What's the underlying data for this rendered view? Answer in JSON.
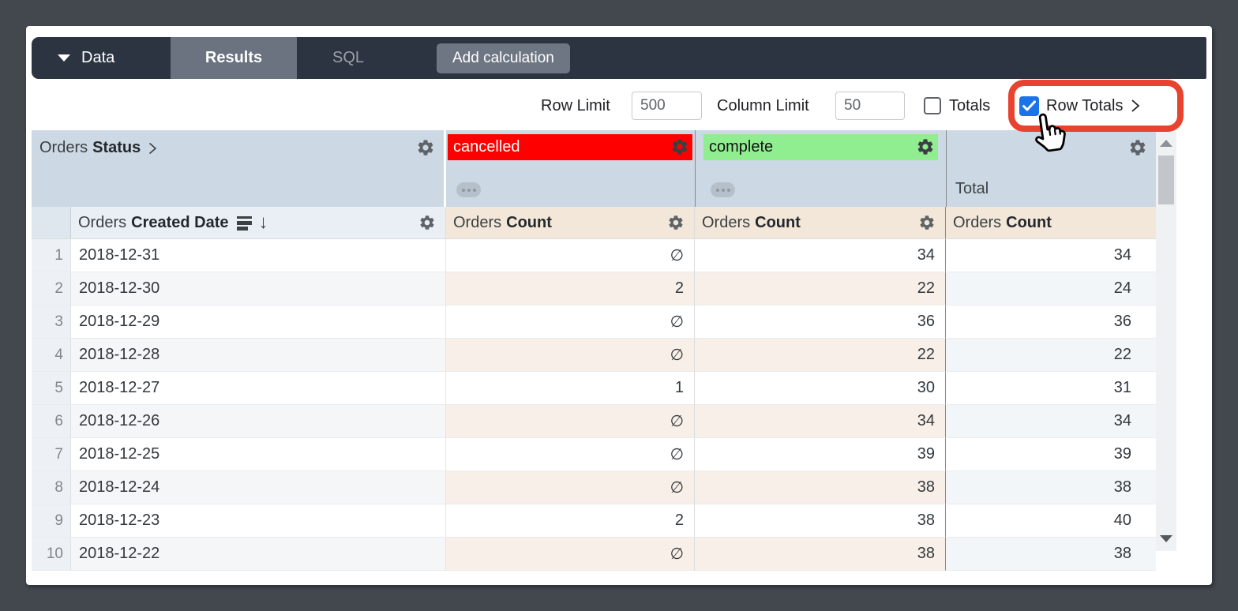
{
  "toolbar": {
    "data_label": "Data",
    "results_label": "Results",
    "sql_label": "SQL",
    "add_calculation_label": "Add calculation"
  },
  "controls": {
    "row_limit_label": "Row Limit",
    "row_limit_value": "500",
    "column_limit_label": "Column Limit",
    "column_limit_value": "50",
    "totals_label": "Totals",
    "totals_checked": false,
    "row_totals_label": "Row Totals",
    "row_totals_checked": true
  },
  "table": {
    "status_header_prefix": "Orders",
    "status_header_field": "Status",
    "pivot_values": [
      {
        "label": "cancelled",
        "bg": "#ff0000",
        "fg": "#ffffff"
      },
      {
        "label": "complete",
        "bg": "#90ee90",
        "fg": "#111111"
      }
    ],
    "total_column_label": "Total",
    "date_header_prefix": "Orders",
    "date_header_field": "Created Date",
    "count_header_prefix": "Orders",
    "count_header_field": "Count",
    "null_symbol": "∅",
    "rows": [
      {
        "n": "1",
        "date": "2018-12-31",
        "cancelled": "∅",
        "complete": "34",
        "total": "34"
      },
      {
        "n": "2",
        "date": "2018-12-30",
        "cancelled": "2",
        "complete": "22",
        "total": "24"
      },
      {
        "n": "3",
        "date": "2018-12-29",
        "cancelled": "∅",
        "complete": "36",
        "total": "36"
      },
      {
        "n": "4",
        "date": "2018-12-28",
        "cancelled": "∅",
        "complete": "22",
        "total": "22"
      },
      {
        "n": "5",
        "date": "2018-12-27",
        "cancelled": "1",
        "complete": "30",
        "total": "31"
      },
      {
        "n": "6",
        "date": "2018-12-26",
        "cancelled": "∅",
        "complete": "34",
        "total": "34"
      },
      {
        "n": "7",
        "date": "2018-12-25",
        "cancelled": "∅",
        "complete": "39",
        "total": "39"
      },
      {
        "n": "8",
        "date": "2018-12-24",
        "cancelled": "∅",
        "complete": "38",
        "total": "38"
      },
      {
        "n": "9",
        "date": "2018-12-23",
        "cancelled": "2",
        "complete": "38",
        "total": "40"
      },
      {
        "n": "10",
        "date": "2018-12-22",
        "cancelled": "∅",
        "complete": "38",
        "total": "38"
      }
    ]
  },
  "colors": {
    "annotation_red": "#e8432f",
    "checkbox_blue": "#1a73e8",
    "topbar": "#2c3442",
    "pivot_header_bg": "#ccd8e3",
    "measure_header_bg": "#f2e7d9",
    "cancelled_bg": "#ff0000",
    "complete_bg": "#90ee90"
  }
}
